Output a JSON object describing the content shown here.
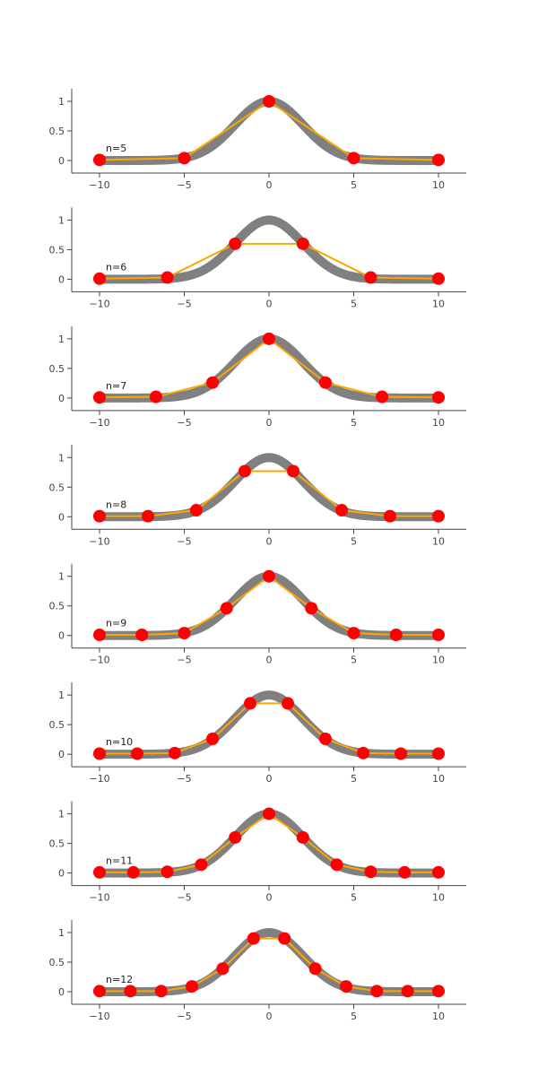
{
  "colors": {
    "true_curve": "#808080",
    "interpolation": "#ffa500",
    "points": "#ff0000"
  },
  "chart_data": [
    {
      "type": "line",
      "label": "n=5",
      "xlim": [
        -10,
        10
      ],
      "ylim": [
        -0.2,
        1.2
      ],
      "x_ticks": [
        "−10",
        "−5",
        "0",
        "5",
        "10"
      ],
      "y_ticks": [
        "0",
        "0.5",
        "1"
      ],
      "series": [
        {
          "values": [
            [
              -10,
              0.01
            ],
            [
              -5,
              0.04
            ],
            [
              0,
              1.0
            ],
            [
              5,
              0.04
            ],
            [
              10,
              0.01
            ]
          ]
        }
      ]
    },
    {
      "type": "line",
      "label": "n=6",
      "xlim": [
        -10,
        10
      ],
      "ylim": [
        -0.2,
        1.2
      ],
      "x_ticks": [
        "−10",
        "−5",
        "0",
        "5",
        "10"
      ],
      "y_ticks": [
        "0",
        "0.5",
        "1"
      ],
      "series": [
        {
          "values": [
            [
              -10,
              0.01
            ],
            [
              -6,
              0.03
            ],
            [
              -2,
              0.6
            ],
            [
              2,
              0.6
            ],
            [
              6,
              0.03
            ],
            [
              10,
              0.01
            ]
          ]
        }
      ]
    },
    {
      "type": "line",
      "label": "n=7",
      "xlim": [
        -10,
        10
      ],
      "ylim": [
        -0.2,
        1.2
      ],
      "x_ticks": [
        "−10",
        "−5",
        "0",
        "5",
        "10"
      ],
      "y_ticks": [
        "0",
        "0.5",
        "1"
      ],
      "series": [
        {
          "values": [
            [
              -10,
              0.01
            ],
            [
              -6.67,
              0.02
            ],
            [
              -3.33,
              0.26
            ],
            [
              0,
              1.0
            ],
            [
              3.33,
              0.26
            ],
            [
              6.67,
              0.02
            ],
            [
              10,
              0.01
            ]
          ]
        }
      ]
    },
    {
      "type": "line",
      "label": "n=8",
      "xlim": [
        -10,
        10
      ],
      "ylim": [
        -0.2,
        1.2
      ],
      "x_ticks": [
        "−10",
        "−5",
        "0",
        "5",
        "10"
      ],
      "y_ticks": [
        "0",
        "0.5",
        "1"
      ],
      "series": [
        {
          "values": [
            [
              -10,
              0.01
            ],
            [
              -7.14,
              0.01
            ],
            [
              -4.29,
              0.11
            ],
            [
              -1.43,
              0.77
            ],
            [
              1.43,
              0.77
            ],
            [
              4.29,
              0.11
            ],
            [
              7.14,
              0.01
            ],
            [
              10,
              0.01
            ]
          ]
        }
      ]
    },
    {
      "type": "line",
      "label": "n=9",
      "xlim": [
        -10,
        10
      ],
      "ylim": [
        -0.2,
        1.2
      ],
      "x_ticks": [
        "−10",
        "−5",
        "0",
        "5",
        "10"
      ],
      "y_ticks": [
        "0",
        "0.5",
        "1"
      ],
      "series": [
        {
          "values": [
            [
              -10,
              0.01
            ],
            [
              -7.5,
              0.01
            ],
            [
              -5,
              0.04
            ],
            [
              -2.5,
              0.46
            ],
            [
              0,
              1.0
            ],
            [
              2.5,
              0.46
            ],
            [
              5,
              0.04
            ],
            [
              7.5,
              0.01
            ],
            [
              10,
              0.01
            ]
          ]
        }
      ]
    },
    {
      "type": "line",
      "label": "n=10",
      "xlim": [
        -10,
        10
      ],
      "ylim": [
        -0.2,
        1.2
      ],
      "x_ticks": [
        "−10",
        "−5",
        "0",
        "5",
        "10"
      ],
      "y_ticks": [
        "0",
        "0.5",
        "1"
      ],
      "series": [
        {
          "values": [
            [
              -10,
              0.01
            ],
            [
              -7.78,
              0.01
            ],
            [
              -5.56,
              0.02
            ],
            [
              -3.33,
              0.26
            ],
            [
              -1.11,
              0.86
            ],
            [
              1.11,
              0.86
            ],
            [
              3.33,
              0.26
            ],
            [
              5.56,
              0.02
            ],
            [
              7.78,
              0.01
            ],
            [
              10,
              0.01
            ]
          ]
        }
      ]
    },
    {
      "type": "line",
      "label": "n=11",
      "xlim": [
        -10,
        10
      ],
      "ylim": [
        -0.2,
        1.2
      ],
      "x_ticks": [
        "−10",
        "−5",
        "0",
        "5",
        "10"
      ],
      "y_ticks": [
        "0",
        "0.5",
        "1"
      ],
      "series": [
        {
          "values": [
            [
              -10,
              0.01
            ],
            [
              -8,
              0.01
            ],
            [
              -6,
              0.02
            ],
            [
              -4,
              0.14
            ],
            [
              -2,
              0.6
            ],
            [
              0,
              1.0
            ],
            [
              2,
              0.6
            ],
            [
              4,
              0.14
            ],
            [
              6,
              0.02
            ],
            [
              8,
              0.01
            ],
            [
              10,
              0.01
            ]
          ]
        }
      ]
    },
    {
      "type": "line",
      "label": "n=12",
      "xlim": [
        -10,
        10
      ],
      "ylim": [
        -0.2,
        1.2
      ],
      "x_ticks": [
        "−10",
        "−5",
        "0",
        "5",
        "10"
      ],
      "y_ticks": [
        "0",
        "0.5",
        "1"
      ],
      "series": [
        {
          "values": [
            [
              -10,
              0.01
            ],
            [
              -8.18,
              0.01
            ],
            [
              -6.36,
              0.01
            ],
            [
              -4.55,
              0.09
            ],
            [
              -2.73,
              0.39
            ],
            [
              -0.91,
              0.9
            ],
            [
              0.91,
              0.9
            ],
            [
              2.73,
              0.39
            ],
            [
              4.55,
              0.09
            ],
            [
              6.36,
              0.01
            ],
            [
              8.18,
              0.01
            ],
            [
              10,
              0.01
            ]
          ]
        }
      ]
    }
  ]
}
